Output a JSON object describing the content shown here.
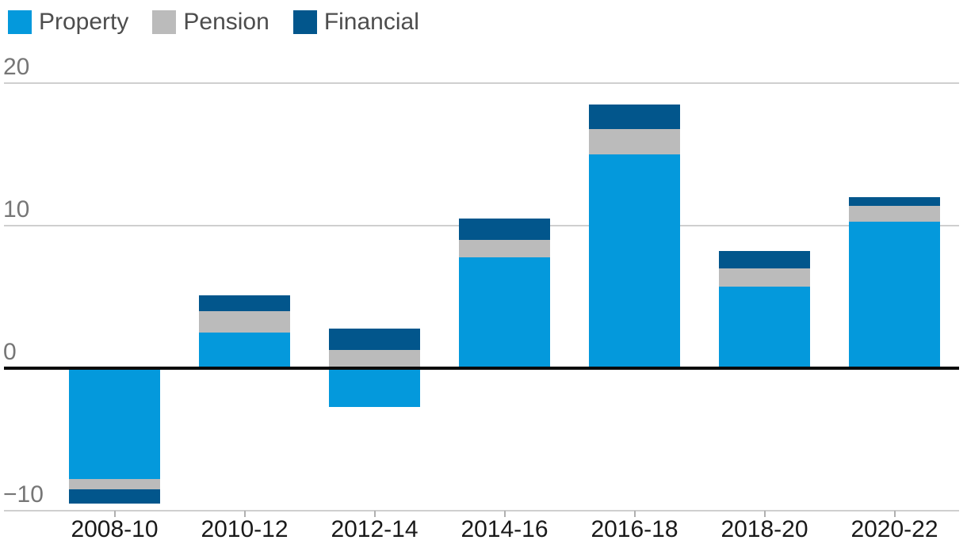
{
  "chart_data": {
    "type": "bar",
    "stacked": true,
    "title": "",
    "categories": [
      "2008-10",
      "2010-12",
      "2012-14",
      "2014-16",
      "2016-18",
      "2018-20",
      "2020-22"
    ],
    "series": [
      {
        "name": "Property",
        "color": "#0499dc",
        "values": [
          -7.8,
          2.5,
          -2.7,
          7.8,
          15.0,
          5.7,
          10.3
        ]
      },
      {
        "name": "Pension",
        "color": "#bbbbbb",
        "values": [
          -0.7,
          1.5,
          1.3,
          1.2,
          1.8,
          1.3,
          1.1
        ]
      },
      {
        "name": "Financial",
        "color": "#02568c",
        "values": [
          -1.0,
          1.1,
          1.5,
          1.5,
          1.7,
          1.2,
          0.6
        ]
      }
    ],
    "yticks": [
      20,
      10,
      0,
      -10
    ],
    "ylim": [
      -10.9,
      21.1
    ],
    "grid": true,
    "zero_line": true,
    "legend_position": "top-left",
    "xlabel": "",
    "ylabel": ""
  },
  "styles": {
    "background": "#ffffff",
    "grid_color": "#cfcfcf",
    "axis_tick_color": "#b0b0b0",
    "zero_line_color": "#0a0a0a",
    "ytick_text_color": "#767676",
    "xtick_text_color": "#1a1a1a",
    "legend_text_color": "#4d4d4d",
    "minus_sign": "−"
  }
}
